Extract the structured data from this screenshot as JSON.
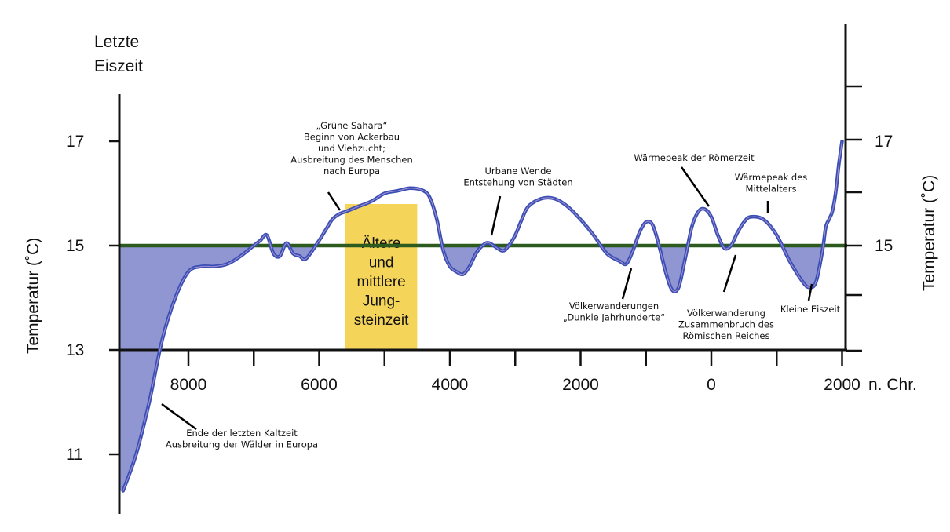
{
  "chart_data": {
    "type": "area",
    "title": "",
    "corner_label": [
      "Letzte",
      "Eiszeit"
    ],
    "ylabel_left": "Temperatur (˚C)",
    "ylabel_right": "Temperatur (˚C)",
    "x_unit": "n. Chr.",
    "xlim": [
      -9000,
      2000
    ],
    "ylim": [
      10,
      19
    ],
    "baseline": 15,
    "x_ticks": [
      {
        "value": -8000,
        "label": "8000"
      },
      {
        "value": -6000,
        "label": "6000"
      },
      {
        "value": -4000,
        "label": "4000"
      },
      {
        "value": -2000,
        "label": "2000"
      },
      {
        "value": 0,
        "label": "0"
      },
      {
        "value": 2000,
        "label": "2000"
      }
    ],
    "y_ticks_left": [
      {
        "value": 17,
        "label": "17"
      },
      {
        "value": 15,
        "label": "15"
      },
      {
        "value": 13,
        "label": "13"
      },
      {
        "value": 11,
        "label": "11"
      }
    ],
    "y_ticks_right": [
      {
        "value": 17,
        "label": "17"
      },
      {
        "value": 15,
        "label": "15"
      }
    ],
    "colors": {
      "curve": "#3a4fb5",
      "fill_below": "#8f96d2",
      "baseline": "#2d5a1e",
      "band": "#f5d45a"
    },
    "band": {
      "x_from": -5600,
      "x_to": -4500,
      "label": [
        "Ältere",
        "und",
        "mittlere",
        "Jung-",
        "steinzeit"
      ]
    },
    "series": [
      {
        "x": [
          -9000,
          -8800,
          -8600,
          -8400,
          -8200,
          -8000,
          -7800,
          -7600,
          -7400,
          -7200,
          -7000,
          -6900,
          -6800,
          -6700,
          -6600,
          -6500,
          -6400,
          -6300,
          -6200,
          -6000,
          -5900,
          -5800,
          -5700,
          -5600,
          -5500,
          -5400,
          -5200,
          -5000,
          -4800,
          -4600,
          -4400,
          -4300,
          -4200,
          -4100,
          -4000,
          -3900,
          -3800,
          -3700,
          -3600,
          -3500,
          -3400,
          -3200,
          -3100,
          -3000,
          -2900,
          -2800,
          -2600,
          -2400,
          -2200,
          -2000,
          -1800,
          -1600,
          -1400,
          -1300,
          -1200,
          -1100,
          -1000,
          -900,
          -800,
          -700,
          -600,
          -500,
          -400,
          -300,
          -200,
          -100,
          0,
          100,
          200,
          300,
          400,
          500,
          600,
          800,
          1000,
          1200,
          1400,
          1500,
          1600,
          1700,
          1750,
          1800,
          1850,
          1900,
          1950,
          2000
        ],
        "y": [
          10.3,
          11.0,
          12.0,
          13.2,
          14.0,
          14.5,
          14.6,
          14.6,
          14.65,
          14.8,
          15.0,
          15.1,
          15.2,
          14.85,
          14.8,
          15.05,
          14.85,
          14.8,
          14.75,
          15.1,
          15.3,
          15.5,
          15.6,
          15.65,
          15.7,
          15.75,
          15.85,
          16.0,
          16.05,
          16.1,
          16.05,
          15.9,
          15.5,
          14.9,
          14.6,
          14.5,
          14.45,
          14.6,
          14.85,
          15.0,
          15.05,
          14.9,
          15.0,
          15.2,
          15.5,
          15.75,
          15.9,
          15.9,
          15.75,
          15.5,
          15.2,
          14.85,
          14.7,
          14.65,
          14.9,
          15.25,
          15.45,
          15.4,
          15.0,
          14.5,
          14.15,
          14.2,
          14.75,
          15.35,
          15.65,
          15.7,
          15.55,
          15.2,
          14.95,
          15.0,
          15.25,
          15.45,
          15.55,
          15.5,
          15.2,
          14.7,
          14.3,
          14.2,
          14.3,
          14.9,
          15.35,
          15.5,
          15.65,
          16.0,
          16.55,
          17.0
        ]
      }
    ],
    "annotations": [
      {
        "lines": [
          "„Grüne Sahara“",
          "Beginn von Ackerbau",
          "und Viehzucht;",
          "Ausbreitung des Menschen",
          "nach Europa"
        ]
      },
      {
        "lines": [
          "Urbane Wende",
          "Entstehung von Städten"
        ]
      },
      {
        "lines": [
          "Wärmepeak der Römerzeit"
        ]
      },
      {
        "lines": [
          "Wärmepeak des",
          "Mittelalters"
        ]
      },
      {
        "lines": [
          "Völkerwanderungen",
          "„Dunkle Jahrhunderte“"
        ]
      },
      {
        "lines": [
          "Völkerwanderung",
          "Zusammenbruch des",
          "Römischen Reiches"
        ]
      },
      {
        "lines": [
          "Kleine Eiszeit"
        ]
      },
      {
        "lines": [
          "Ende der letzten Kaltzeit",
          "Ausbreitung der Wälder in Europa"
        ]
      }
    ]
  }
}
